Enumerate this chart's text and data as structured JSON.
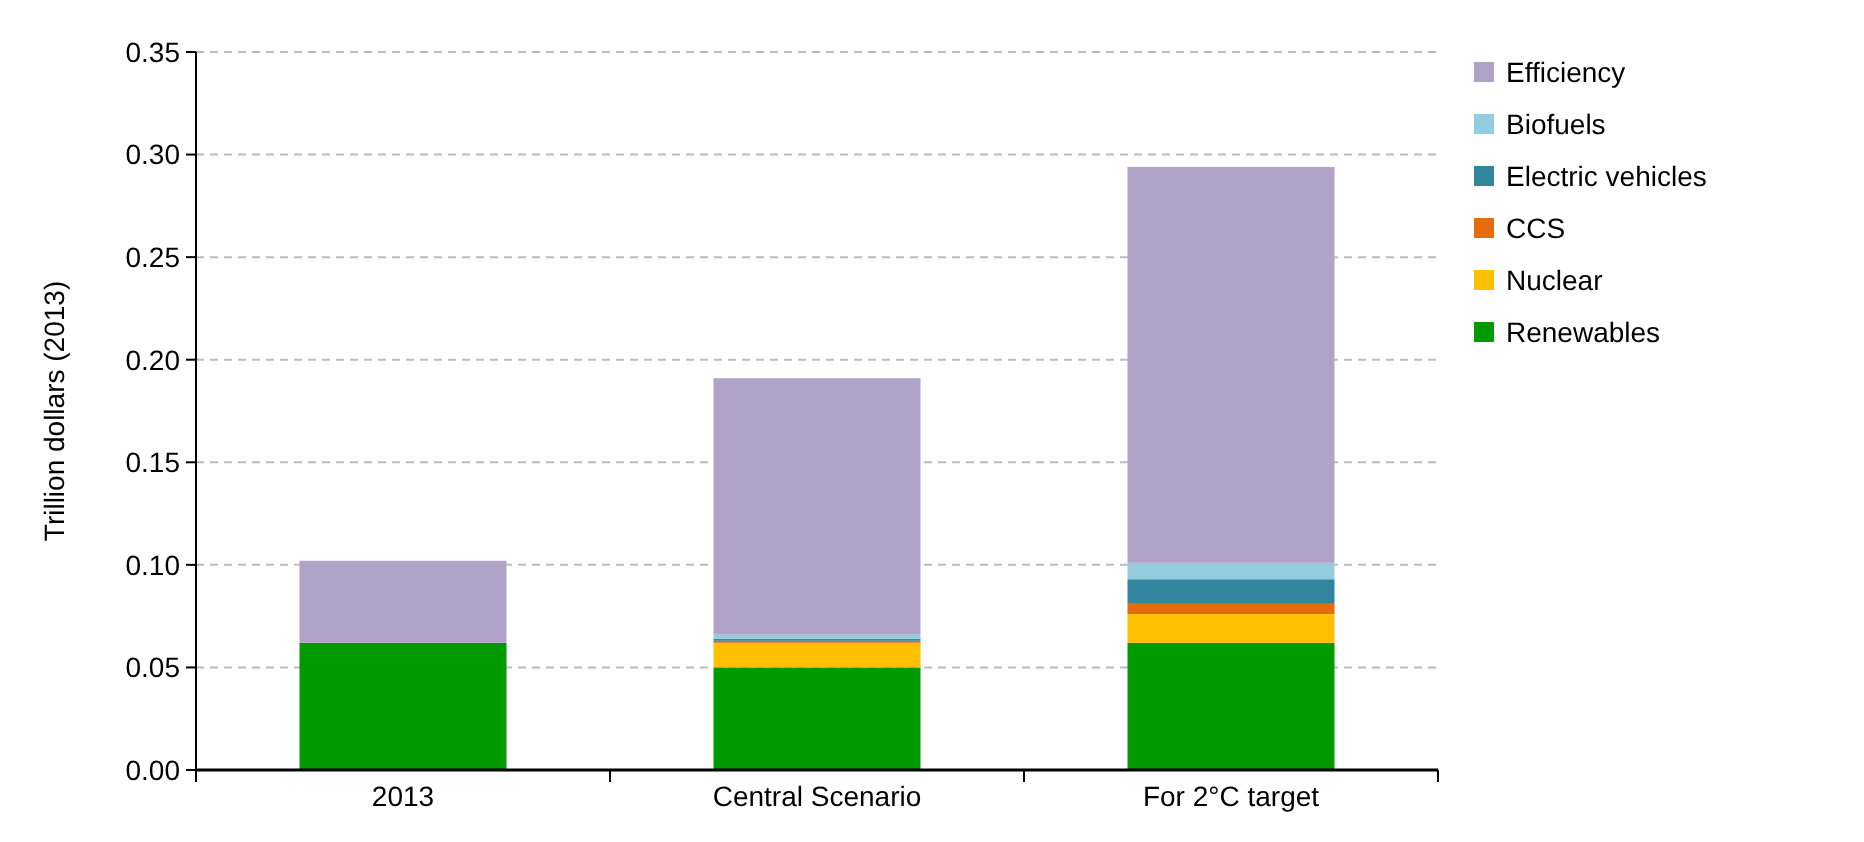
{
  "chart_data": {
    "type": "bar",
    "stacked": true,
    "ylabel": "Trillion dollars (2013)",
    "categories": [
      "2013",
      "Central Scenario",
      "For 2°C target"
    ],
    "series": [
      {
        "name": "Renewables",
        "color": "#009900",
        "values": [
          0.062,
          0.05,
          0.062
        ]
      },
      {
        "name": "Nuclear",
        "color": "#ffc000",
        "values": [
          0,
          0.012,
          0.014
        ]
      },
      {
        "name": "CCS",
        "color": "#e46c0a",
        "values": [
          0,
          0.001,
          0.005
        ]
      },
      {
        "name": "Electric vehicles",
        "color": "#31859c",
        "values": [
          0,
          0.001,
          0.012
        ]
      },
      {
        "name": "Biofuels",
        "color": "#93cddd",
        "values": [
          0,
          0.002,
          0.008
        ]
      },
      {
        "name": "Efficiency",
        "color": "#b1a2c8",
        "values": [
          0.04,
          0.125,
          0.193
        ]
      }
    ],
    "ylim": [
      0,
      0.35
    ],
    "yticks": [
      {
        "value": 0,
        "label": "0.00"
      },
      {
        "value": 0.05,
        "label": "0.05"
      },
      {
        "value": 0.1,
        "label": "0.10"
      },
      {
        "value": 0.15,
        "label": "0.15"
      },
      {
        "value": 0.2,
        "label": "0.20"
      },
      {
        "value": 0.25,
        "label": "0.25"
      },
      {
        "value": 0.3,
        "label": "0.30"
      },
      {
        "value": 0.35,
        "label": "0.35"
      }
    ],
    "grid": "y",
    "legend": "right"
  }
}
